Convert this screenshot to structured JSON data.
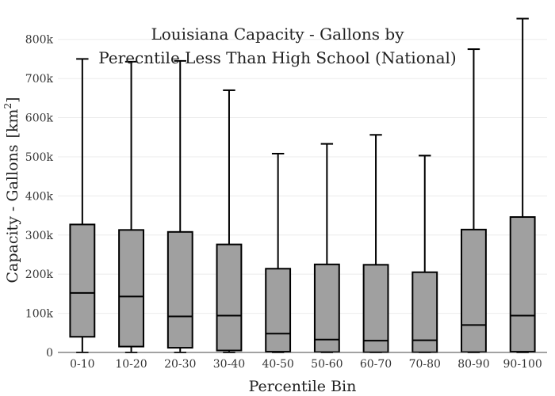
{
  "chart_data": {
    "type": "box",
    "title_lines": [
      "Louisiana Capacity - Gallons by",
      "Perecntile Less Than High School (National)"
    ],
    "xlabel": "Percentile Bin",
    "ylabel": "Capacity - Gallons",
    "ylabel_unit": "[km",
    "ylabel_unit_sup": "2",
    "ylabel_unit_close": "]",
    "ylim": [
      0,
      850000
    ],
    "yticks": [
      0,
      100000,
      200000,
      300000,
      400000,
      500000,
      600000,
      700000,
      800000
    ],
    "ytick_labels": [
      "0",
      "100k",
      "200k",
      "300k",
      "400k",
      "500k",
      "600k",
      "700k",
      "800k"
    ],
    "grid": true,
    "box_color": "#a0a0a0",
    "line_color": "#000000",
    "categories": [
      "0-10",
      "10-20",
      "20-30",
      "30-40",
      "40-50",
      "50-60",
      "60-70",
      "70-80",
      "80-90",
      "90-100"
    ],
    "boxes": [
      {
        "min": 0,
        "q1": 40000,
        "median": 152000,
        "q3": 327000,
        "max": 750000
      },
      {
        "min": 0,
        "q1": 15000,
        "median": 143000,
        "q3": 313000,
        "max": 743000
      },
      {
        "min": 0,
        "q1": 12000,
        "median": 92000,
        "q3": 308000,
        "max": 745000
      },
      {
        "min": 0,
        "q1": 5000,
        "median": 94000,
        "q3": 276000,
        "max": 670000
      },
      {
        "min": 0,
        "q1": 2000,
        "median": 48000,
        "q3": 214000,
        "max": 508000
      },
      {
        "min": 0,
        "q1": 1000,
        "median": 33000,
        "q3": 225000,
        "max": 533000
      },
      {
        "min": 0,
        "q1": 500,
        "median": 30000,
        "q3": 224000,
        "max": 556000
      },
      {
        "min": 0,
        "q1": 500,
        "median": 31000,
        "q3": 205000,
        "max": 503000
      },
      {
        "min": 0,
        "q1": 1000,
        "median": 70000,
        "q3": 314000,
        "max": 775000
      },
      {
        "min": 0,
        "q1": 2000,
        "median": 94000,
        "q3": 346000,
        "max": 853000
      }
    ]
  }
}
